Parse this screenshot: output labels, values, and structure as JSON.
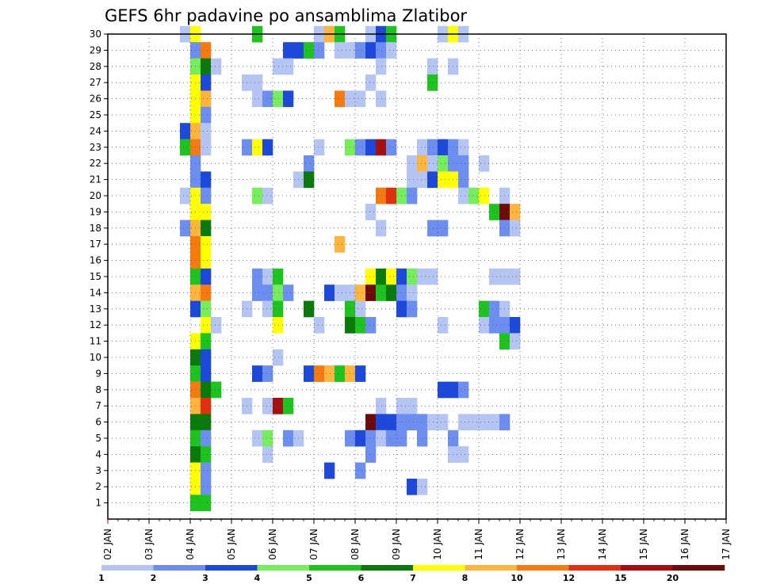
{
  "chart_data": {
    "type": "heatmap",
    "title": "GEFS 6hr padavine po ansamblima Zlatibor",
    "y_labels": [
      "1",
      "2",
      "3",
      "4",
      "5",
      "6",
      "7",
      "8",
      "9",
      "10",
      "11",
      "12",
      "13",
      "14",
      "15",
      "16",
      "17",
      "18",
      "19",
      "20",
      "21",
      "22",
      "23",
      "24",
      "25",
      "26",
      "27",
      "28",
      "29",
      "30"
    ],
    "x_labels": [
      "02 JAN",
      "03 JAN",
      "04 JAN",
      "05 JAN",
      "06 JAN",
      "07 JAN",
      "08 JAN",
      "09 JAN",
      "10 JAN",
      "11 JAN",
      "12 JAN",
      "13 JAN",
      "14 JAN",
      "15 JAN",
      "16 JAN",
      "17 JAN"
    ],
    "x_start": "02 JAN 00Z",
    "step": "6hr",
    "ylim": [
      0,
      30
    ],
    "grid": true,
    "colorbar": {
      "labels": [
        "1",
        "2",
        "3",
        "4",
        "5",
        "6",
        "7",
        "8",
        "10",
        "12",
        "15",
        "20"
      ],
      "colors": [
        "#b4c5f4",
        "#6b8ef0",
        "#1c49db",
        "#76ee5c",
        "#1ec41e",
        "#0a7a0a",
        "#ffff00",
        "#ffb43b",
        "#f57a0f",
        "#e03010",
        "#a50f0f",
        "#6e0a0a"
      ]
    },
    "cells": [
      [
        30,
        7,
        1
      ],
      [
        30,
        8,
        7
      ],
      [
        30,
        14,
        5
      ],
      [
        30,
        20,
        1
      ],
      [
        30,
        21,
        8
      ],
      [
        30,
        22,
        5
      ],
      [
        30,
        25,
        1
      ],
      [
        30,
        26,
        3
      ],
      [
        30,
        27,
        5
      ],
      [
        30,
        32,
        1
      ],
      [
        30,
        33,
        7
      ],
      [
        30,
        34,
        1
      ],
      [
        29,
        8,
        2
      ],
      [
        29,
        9,
        9
      ],
      [
        29,
        17,
        3
      ],
      [
        29,
        18,
        3
      ],
      [
        29,
        19,
        5
      ],
      [
        29,
        20,
        2
      ],
      [
        29,
        22,
        1
      ],
      [
        29,
        23,
        1
      ],
      [
        29,
        24,
        2
      ],
      [
        29,
        25,
        3
      ],
      [
        29,
        26,
        2
      ],
      [
        29,
        27,
        1
      ],
      [
        28,
        8,
        4
      ],
      [
        28,
        9,
        6
      ],
      [
        28,
        10,
        1
      ],
      [
        28,
        16,
        1
      ],
      [
        28,
        17,
        1
      ],
      [
        28,
        26,
        1
      ],
      [
        28,
        31,
        1
      ],
      [
        28,
        33,
        1
      ],
      [
        27,
        8,
        7
      ],
      [
        27,
        9,
        3
      ],
      [
        27,
        13,
        1
      ],
      [
        27,
        14,
        1
      ],
      [
        27,
        25,
        1
      ],
      [
        27,
        31,
        5
      ],
      [
        26,
        8,
        7
      ],
      [
        26,
        9,
        8
      ],
      [
        26,
        14,
        1
      ],
      [
        26,
        15,
        2
      ],
      [
        26,
        16,
        4
      ],
      [
        26,
        17,
        3
      ],
      [
        26,
        22,
        9
      ],
      [
        26,
        23,
        1
      ],
      [
        26,
        24,
        1
      ],
      [
        26,
        26,
        1
      ],
      [
        25,
        8,
        7
      ],
      [
        25,
        9,
        2
      ],
      [
        24,
        7,
        3
      ],
      [
        24,
        8,
        8
      ],
      [
        24,
        9,
        1
      ],
      [
        23,
        7,
        5
      ],
      [
        23,
        8,
        9
      ],
      [
        23,
        9,
        1
      ],
      [
        23,
        13,
        2
      ],
      [
        23,
        14,
        7
      ],
      [
        23,
        15,
        3
      ],
      [
        23,
        20,
        1
      ],
      [
        23,
        23,
        4
      ],
      [
        23,
        24,
        2
      ],
      [
        23,
        25,
        3
      ],
      [
        23,
        26,
        11
      ],
      [
        23,
        27,
        2
      ],
      [
        23,
        30,
        1
      ],
      [
        23,
        31,
        2
      ],
      [
        23,
        32,
        3
      ],
      [
        23,
        33,
        2
      ],
      [
        23,
        34,
        1
      ],
      [
        22,
        8,
        2
      ],
      [
        22,
        19,
        2
      ],
      [
        22,
        29,
        1
      ],
      [
        22,
        30,
        8
      ],
      [
        22,
        31,
        1
      ],
      [
        22,
        32,
        4
      ],
      [
        22,
        33,
        2
      ],
      [
        22,
        34,
        2
      ],
      [
        22,
        36,
        1
      ],
      [
        21,
        8,
        2
      ],
      [
        21,
        9,
        3
      ],
      [
        21,
        18,
        1
      ],
      [
        21,
        19,
        6
      ],
      [
        21,
        29,
        1
      ],
      [
        21,
        30,
        1
      ],
      [
        21,
        31,
        3
      ],
      [
        21,
        32,
        7
      ],
      [
        21,
        33,
        7
      ],
      [
        21,
        34,
        2
      ],
      [
        20,
        7,
        1
      ],
      [
        20,
        8,
        7
      ],
      [
        20,
        9,
        2
      ],
      [
        20,
        14,
        4
      ],
      [
        20,
        15,
        1
      ],
      [
        20,
        26,
        9
      ],
      [
        20,
        27,
        10
      ],
      [
        20,
        28,
        4
      ],
      [
        20,
        29,
        2
      ],
      [
        20,
        34,
        1
      ],
      [
        20,
        35,
        4
      ],
      [
        20,
        36,
        7
      ],
      [
        20,
        38,
        1
      ],
      [
        19,
        8,
        7
      ],
      [
        19,
        9,
        7
      ],
      [
        19,
        25,
        1
      ],
      [
        19,
        37,
        5
      ],
      [
        19,
        38,
        12
      ],
      [
        19,
        39,
        8
      ],
      [
        18,
        7,
        2
      ],
      [
        18,
        8,
        8
      ],
      [
        18,
        9,
        6
      ],
      [
        18,
        26,
        1
      ],
      [
        18,
        31,
        2
      ],
      [
        18,
        32,
        2
      ],
      [
        18,
        38,
        2
      ],
      [
        18,
        39,
        1
      ],
      [
        17,
        8,
        9
      ],
      [
        17,
        9,
        7
      ],
      [
        17,
        22,
        8
      ],
      [
        16,
        8,
        9
      ],
      [
        16,
        9,
        7
      ],
      [
        15,
        8,
        5
      ],
      [
        15,
        9,
        3
      ],
      [
        15,
        14,
        2
      ],
      [
        15,
        15,
        1
      ],
      [
        15,
        16,
        5
      ],
      [
        15,
        25,
        7
      ],
      [
        15,
        26,
        6
      ],
      [
        15,
        27,
        7
      ],
      [
        15,
        28,
        3
      ],
      [
        15,
        29,
        4
      ],
      [
        15,
        30,
        1
      ],
      [
        15,
        31,
        1
      ],
      [
        15,
        37,
        1
      ],
      [
        15,
        38,
        1
      ],
      [
        15,
        39,
        1
      ],
      [
        14,
        8,
        8
      ],
      [
        14,
        9,
        9
      ],
      [
        14,
        14,
        2
      ],
      [
        14,
        15,
        2
      ],
      [
        14,
        16,
        4
      ],
      [
        14,
        17,
        2
      ],
      [
        14,
        21,
        3
      ],
      [
        14,
        22,
        1
      ],
      [
        14,
        23,
        1
      ],
      [
        14,
        24,
        8
      ],
      [
        14,
        25,
        12
      ],
      [
        14,
        26,
        5
      ],
      [
        14,
        27,
        6
      ],
      [
        14,
        28,
        2
      ],
      [
        14,
        29,
        1
      ],
      [
        13,
        8,
        3
      ],
      [
        13,
        9,
        4
      ],
      [
        13,
        13,
        1
      ],
      [
        13,
        15,
        1
      ],
      [
        13,
        16,
        5
      ],
      [
        13,
        19,
        6
      ],
      [
        13,
        23,
        5
      ],
      [
        13,
        24,
        1
      ],
      [
        13,
        28,
        3
      ],
      [
        13,
        29,
        2
      ],
      [
        13,
        36,
        5
      ],
      [
        13,
        37,
        2
      ],
      [
        13,
        38,
        1
      ],
      [
        12,
        9,
        7
      ],
      [
        12,
        10,
        1
      ],
      [
        12,
        16,
        7
      ],
      [
        12,
        20,
        1
      ],
      [
        12,
        23,
        6
      ],
      [
        12,
        24,
        5
      ],
      [
        12,
        25,
        2
      ],
      [
        12,
        32,
        1
      ],
      [
        12,
        36,
        1
      ],
      [
        12,
        37,
        2
      ],
      [
        12,
        38,
        2
      ],
      [
        12,
        39,
        3
      ],
      [
        11,
        8,
        7
      ],
      [
        11,
        9,
        5
      ],
      [
        11,
        38,
        5
      ],
      [
        11,
        39,
        1
      ],
      [
        10,
        8,
        6
      ],
      [
        10,
        9,
        3
      ],
      [
        10,
        16,
        1
      ],
      [
        9,
        8,
        5
      ],
      [
        9,
        9,
        3
      ],
      [
        9,
        14,
        3
      ],
      [
        9,
        15,
        2
      ],
      [
        9,
        19,
        3
      ],
      [
        9,
        20,
        9
      ],
      [
        9,
        21,
        8
      ],
      [
        9,
        22,
        5
      ],
      [
        9,
        23,
        8
      ],
      [
        9,
        24,
        3
      ],
      [
        8,
        8,
        9
      ],
      [
        8,
        9,
        6
      ],
      [
        8,
        10,
        5
      ],
      [
        8,
        32,
        3
      ],
      [
        8,
        33,
        3
      ],
      [
        8,
        34,
        2
      ],
      [
        7,
        8,
        8
      ],
      [
        7,
        9,
        10
      ],
      [
        7,
        13,
        1
      ],
      [
        7,
        15,
        1
      ],
      [
        7,
        16,
        11
      ],
      [
        7,
        17,
        5
      ],
      [
        7,
        26,
        1
      ],
      [
        7,
        28,
        1
      ],
      [
        7,
        29,
        1
      ],
      [
        6,
        8,
        6
      ],
      [
        6,
        9,
        6
      ],
      [
        6,
        25,
        12
      ],
      [
        6,
        26,
        3
      ],
      [
        6,
        27,
        3
      ],
      [
        6,
        28,
        2
      ],
      [
        6,
        29,
        2
      ],
      [
        6,
        30,
        2
      ],
      [
        6,
        31,
        1
      ],
      [
        6,
        32,
        1
      ],
      [
        6,
        34,
        1
      ],
      [
        6,
        35,
        1
      ],
      [
        6,
        36,
        1
      ],
      [
        6,
        37,
        1
      ],
      [
        6,
        38,
        2
      ],
      [
        5,
        8,
        5
      ],
      [
        5,
        9,
        2
      ],
      [
        5,
        14,
        1
      ],
      [
        5,
        15,
        4
      ],
      [
        5,
        17,
        2
      ],
      [
        5,
        18,
        1
      ],
      [
        5,
        23,
        2
      ],
      [
        5,
        24,
        3
      ],
      [
        5,
        25,
        2
      ],
      [
        5,
        26,
        1
      ],
      [
        5,
        27,
        2
      ],
      [
        5,
        28,
        2
      ],
      [
        5,
        30,
        2
      ],
      [
        5,
        33,
        2
      ],
      [
        4,
        8,
        6
      ],
      [
        4,
        9,
        5
      ],
      [
        4,
        15,
        1
      ],
      [
        4,
        25,
        2
      ],
      [
        4,
        33,
        1
      ],
      [
        4,
        34,
        1
      ],
      [
        3,
        8,
        7
      ],
      [
        3,
        9,
        2
      ],
      [
        3,
        21,
        3
      ],
      [
        3,
        24,
        2
      ],
      [
        2,
        8,
        7
      ],
      [
        2,
        9,
        2
      ],
      [
        2,
        29,
        3
      ],
      [
        2,
        30,
        1
      ],
      [
        1,
        8,
        5
      ],
      [
        1,
        9,
        5
      ]
    ]
  }
}
